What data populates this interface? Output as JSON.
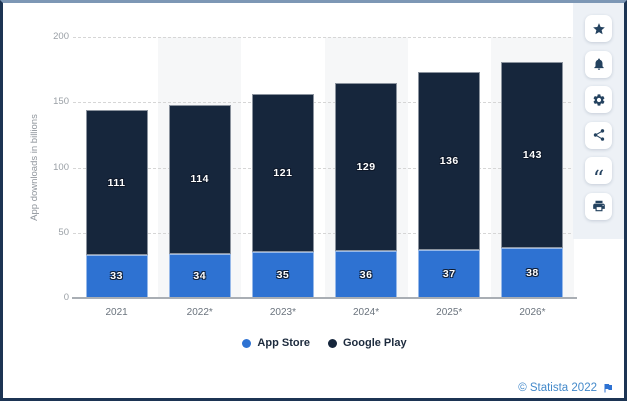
{
  "chart_data": {
    "type": "bar",
    "subtype": "stacked-column",
    "categories": [
      "2021",
      "2022*",
      "2023*",
      "2024*",
      "2025*",
      "2026*"
    ],
    "series": [
      {
        "name": "App Store",
        "color": "#2e72d2",
        "values": [
          33,
          34,
          35,
          36,
          37,
          38
        ]
      },
      {
        "name": "Google Play",
        "color": "#16263c",
        "values": [
          111,
          114,
          121,
          129,
          136,
          143
        ]
      }
    ],
    "title": "",
    "xlabel": "",
    "ylabel": "App downloads in billions",
    "ylim": [
      0,
      200
    ],
    "y_ticks": [
      0,
      50,
      100,
      150,
      200
    ],
    "grid": "horizontal dashed",
    "plot_bands": "alternating light columns behind 2022*, 2024*, 2026*",
    "legend_position": "bottom",
    "data_labels": "white values centered inside each segment"
  },
  "toolbar": {
    "icons": [
      {
        "name": "star-icon"
      },
      {
        "name": "bell-icon"
      },
      {
        "name": "gear-icon"
      },
      {
        "name": "share-icon"
      },
      {
        "name": "quote-citation-icon"
      },
      {
        "name": "print-icon"
      }
    ]
  },
  "footer": {
    "copyright": "© Statista 2022",
    "flag_icon": "flag-report-icon"
  },
  "colors": {
    "app_store": "#2e72d2",
    "google_play": "#16263c",
    "footer_link": "#4389ca",
    "toolbar_icon": "#24425f",
    "plot_band": "#f6f7f8"
  }
}
